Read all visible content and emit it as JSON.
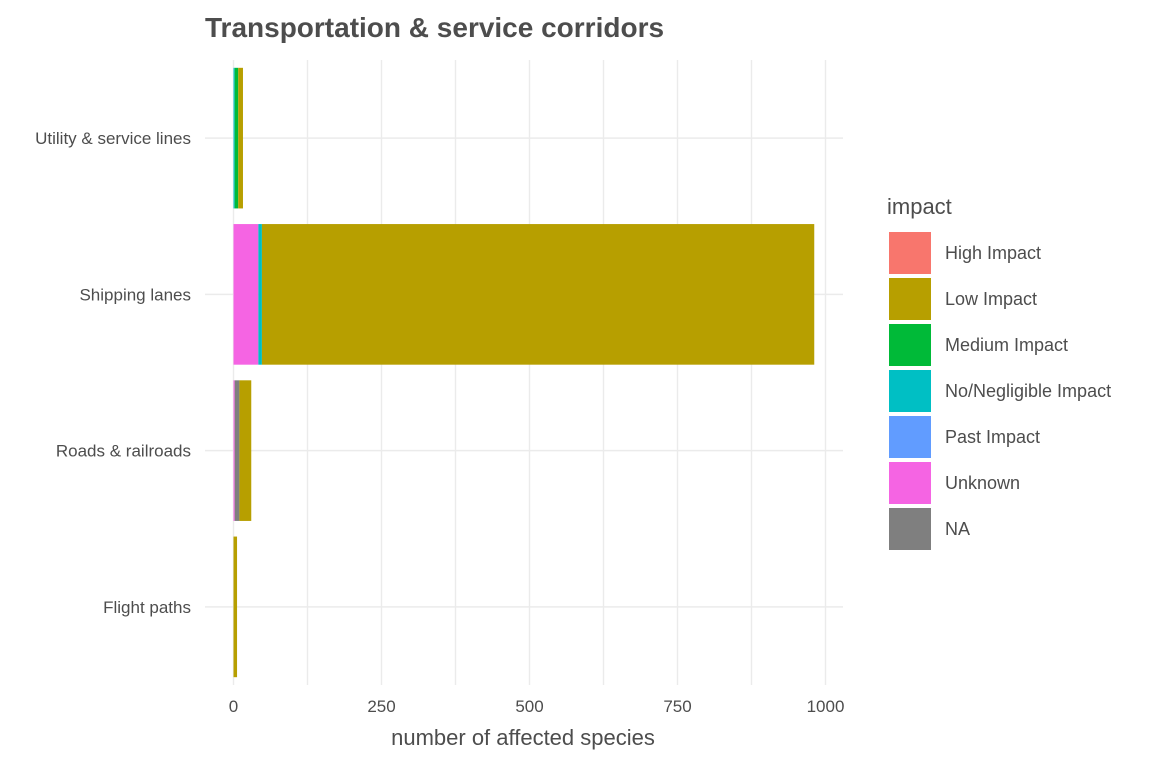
{
  "chart_data": {
    "type": "bar",
    "orientation": "horizontal",
    "stacked": true,
    "title": "Transportation & service corridors",
    "xlabel": "number of affected species",
    "ylabel": "",
    "xlim": [
      0,
      1030
    ],
    "x_ticks": [
      0,
      250,
      500,
      750,
      1000
    ],
    "grid": true,
    "legend_position": "right",
    "legend_title": "impact",
    "categories": [
      "Utility & service lines",
      "Shipping lanes",
      "Roads & railroads",
      "Flight paths"
    ],
    "series": [
      {
        "name": "High Impact",
        "color": "#F8766D",
        "values": [
          0,
          0,
          0,
          0
        ]
      },
      {
        "name": "Unknown",
        "color": "#F564E3",
        "values": [
          0,
          42,
          2,
          0
        ]
      },
      {
        "name": "Past Impact",
        "color": "#619CFF",
        "values": [
          0,
          0,
          0,
          0
        ]
      },
      {
        "name": "No/Negligible Impact",
        "color": "#00BFC4",
        "values": [
          2,
          6,
          0,
          0
        ]
      },
      {
        "name": "Medium Impact",
        "color": "#00BA38",
        "values": [
          6,
          0,
          0,
          0
        ]
      },
      {
        "name": "NA",
        "color": "#7F7F7F",
        "values": [
          0,
          0,
          8,
          0
        ]
      },
      {
        "name": "Low Impact",
        "color": "#B79F00",
        "values": [
          8,
          933,
          20,
          6
        ]
      }
    ],
    "legend_order": [
      "High Impact",
      "Low Impact",
      "Medium Impact",
      "No/Negligible Impact",
      "Past Impact",
      "Unknown",
      "NA"
    ]
  }
}
